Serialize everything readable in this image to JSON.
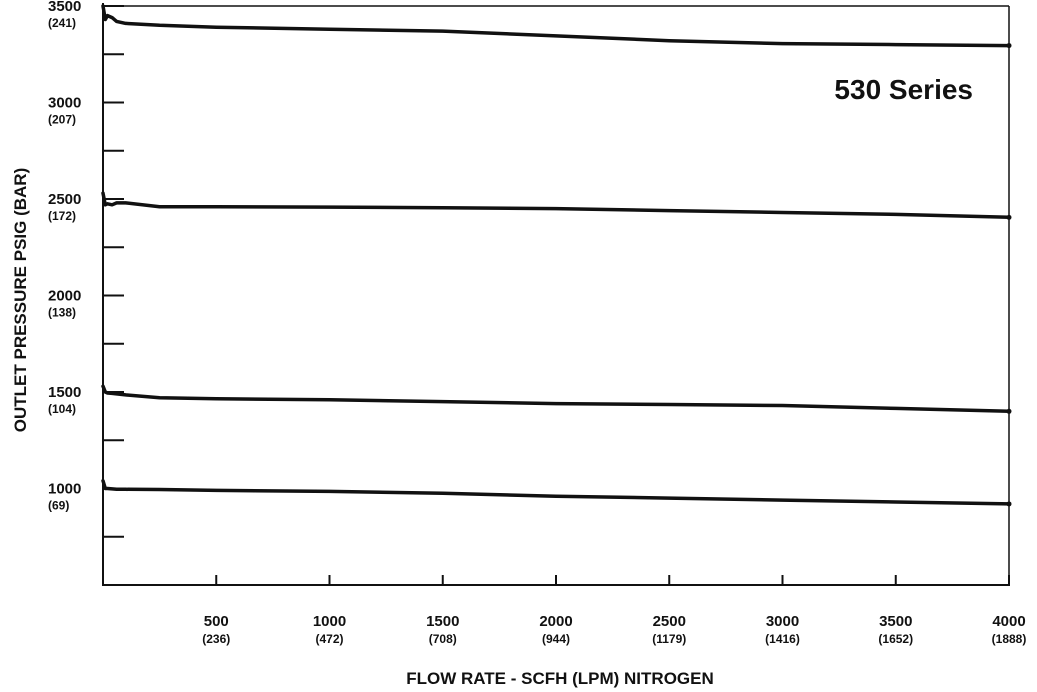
{
  "chart_data": {
    "type": "line",
    "title": "530 Series",
    "xlabel": "FLOW RATE - SCFH (LPM) NITROGEN",
    "ylabel": "OUTLET PRESSURE PSIG (BAR)",
    "xlim": [
      0,
      4000
    ],
    "ylim": [
      500,
      3500
    ],
    "x_ticks": [
      {
        "value": 500,
        "label": "500",
        "sublabel": "(236)"
      },
      {
        "value": 1000,
        "label": "1000",
        "sublabel": "(472)"
      },
      {
        "value": 1500,
        "label": "1500",
        "sublabel": "(708)"
      },
      {
        "value": 2000,
        "label": "2000",
        "sublabel": "(944)"
      },
      {
        "value": 2500,
        "label": "2500",
        "sublabel": "(1179)"
      },
      {
        "value": 3000,
        "label": "3000",
        "sublabel": "(1416)"
      },
      {
        "value": 3500,
        "label": "3500",
        "sublabel": "(1652)"
      },
      {
        "value": 4000,
        "label": "4000",
        "sublabel": "(1888)"
      }
    ],
    "y_ticks": [
      {
        "value": 3500,
        "label": "3500",
        "sublabel": "(241)"
      },
      {
        "value": 3250,
        "label": "",
        "sublabel": ""
      },
      {
        "value": 3000,
        "label": "3000",
        "sublabel": "(207)"
      },
      {
        "value": 2750,
        "label": "",
        "sublabel": ""
      },
      {
        "value": 2500,
        "label": "2500",
        "sublabel": "(172)"
      },
      {
        "value": 2250,
        "label": "",
        "sublabel": ""
      },
      {
        "value": 2000,
        "label": "2000",
        "sublabel": "(138)"
      },
      {
        "value": 1750,
        "label": "",
        "sublabel": ""
      },
      {
        "value": 1500,
        "label": "1500",
        "sublabel": "(104)"
      },
      {
        "value": 1250,
        "label": "",
        "sublabel": ""
      },
      {
        "value": 1000,
        "label": "1000",
        "sublabel": "(69)"
      },
      {
        "value": 750,
        "label": "",
        "sublabel": ""
      }
    ],
    "grid": false,
    "series": [
      {
        "x": [
          0,
          10,
          20,
          40,
          60,
          100,
          250,
          500,
          1000,
          1500,
          2000,
          2500,
          3000,
          3500,
          4000
        ],
        "y": [
          3500,
          3430,
          3450,
          3440,
          3420,
          3410,
          3400,
          3390,
          3380,
          3370,
          3345,
          3320,
          3305,
          3300,
          3295
        ]
      },
      {
        "x": [
          0,
          10,
          20,
          40,
          60,
          100,
          250,
          500,
          1000,
          1500,
          2000,
          2500,
          3000,
          3500,
          4000
        ],
        "y": [
          2530,
          2470,
          2475,
          2470,
          2480,
          2480,
          2460,
          2460,
          2458,
          2455,
          2450,
          2440,
          2430,
          2420,
          2405
        ]
      },
      {
        "x": [
          0,
          10,
          20,
          40,
          60,
          100,
          250,
          500,
          1000,
          1500,
          2000,
          2500,
          3000,
          3500,
          4000
        ],
        "y": [
          1530,
          1500,
          1495,
          1493,
          1490,
          1485,
          1470,
          1465,
          1460,
          1450,
          1440,
          1435,
          1430,
          1415,
          1400
        ]
      },
      {
        "x": [
          0,
          10,
          20,
          40,
          60,
          100,
          250,
          500,
          1000,
          1500,
          2000,
          2500,
          3000,
          3500,
          4000
        ],
        "y": [
          1040,
          1000,
          1000,
          998,
          996,
          996,
          995,
          990,
          985,
          975,
          960,
          950,
          940,
          930,
          920
        ]
      }
    ],
    "line_color": "#111111"
  }
}
